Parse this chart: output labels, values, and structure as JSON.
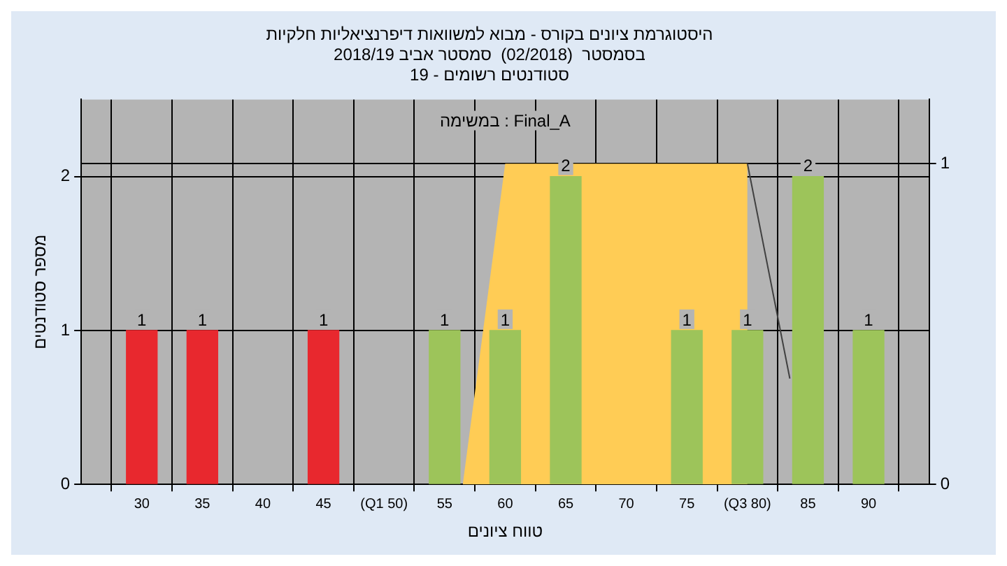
{
  "chart_data": {
    "type": "bar",
    "title": "היסטוגרמת ציונים בקורס - מבוא למשוואות דיפרנציאליות חלקיות",
    "subtitle": "בסמסטר  (02/2018)  סמסטר אביב 2018/19\nסטודנטים רשומים - 19",
    "xlabel": "טווח ציונים",
    "ylabel": "מספר סטודנטים",
    "annotations": [
      "במשימה : Final_A"
    ],
    "x": [
      30,
      35,
      45,
      55,
      60,
      65,
      75,
      80,
      85,
      90
    ],
    "series": [
      {
        "type": "area",
        "axis": "y2",
        "color": "#ffcc55",
        "x": [
          56.5,
          60,
          80,
          80
        ],
        "values": [
          0,
          1,
          1,
          0
        ]
      },
      {
        "type": "line",
        "axis": "y2",
        "color": "#404040",
        "x": [
          80,
          83.5
        ],
        "values": [
          1,
          0.33
        ]
      },
      {
        "values": [
          1,
          1,
          1,
          1,
          1,
          2,
          1,
          1,
          2,
          1
        ],
        "value_labels": [
          "1",
          "1",
          "1",
          "1",
          "1",
          "2",
          "1",
          "1",
          "2",
          "1"
        ],
        "colors": [
          "#e8282e",
          "#e8282e",
          "#e8282e",
          "#9dc45a",
          "#9dc45a",
          "#9dc45a",
          "#9dc45a",
          "#9dc45a",
          "#9dc45a",
          "#9dc45a"
        ]
      }
    ],
    "xlim": [
      25,
      95
    ],
    "xticks": [
      {
        "value": 25,
        "label": null
      },
      30,
      35,
      40,
      45,
      {
        "value": 50,
        "label": "(Q1 50)"
      },
      55,
      60,
      65,
      70,
      75,
      {
        "value": 80,
        "label": "(Q3 80)"
      },
      85,
      90,
      {
        "value": 95,
        "label": null
      }
    ],
    "ylim": [
      0,
      2.5
    ],
    "yticks": [
      0,
      1,
      2
    ],
    "y2lim": [
      0,
      1.2
    ],
    "y2ticks": [
      0,
      1
    ],
    "grid": true,
    "legend": false
  }
}
